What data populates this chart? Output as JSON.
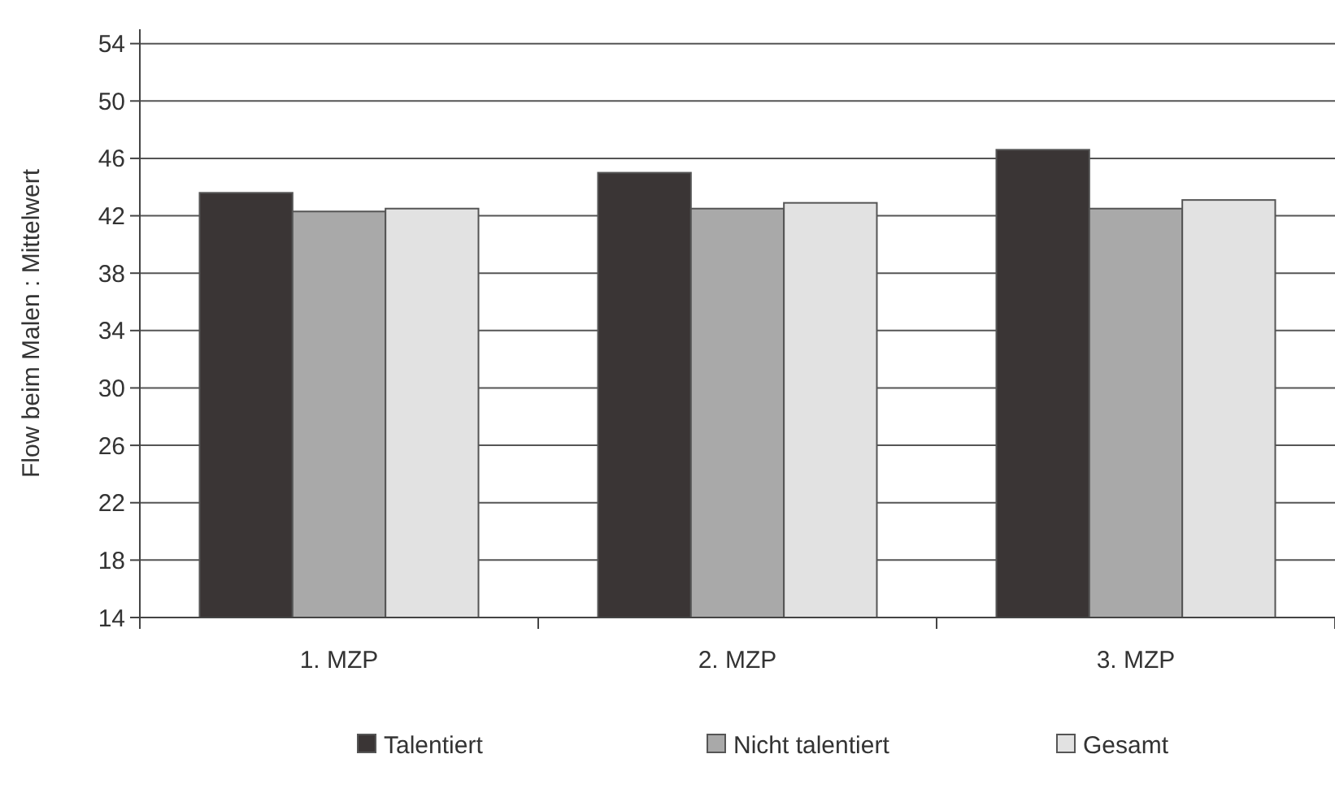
{
  "chart_data": {
    "type": "bar",
    "ylabel": "Flow beim Malen : Mittelwert",
    "categories": [
      "1. MZP",
      "2. MZP",
      "3. MZP"
    ],
    "series": [
      {
        "name": "Talentiert",
        "color": "#3a3535",
        "values": [
          43.6,
          45.0,
          46.6
        ]
      },
      {
        "name": "Nicht talentiert",
        "color": "#a9a9a9",
        "values": [
          42.3,
          42.5,
          42.5
        ]
      },
      {
        "name": "Gesamt",
        "color": "#e2e2e2",
        "values": [
          42.5,
          42.9,
          43.1
        ]
      }
    ],
    "ylim": [
      14,
      55
    ],
    "yticks": [
      14,
      18,
      22,
      26,
      30,
      34,
      38,
      42,
      46,
      50,
      54
    ],
    "grid": "y",
    "legend": "bottom"
  }
}
